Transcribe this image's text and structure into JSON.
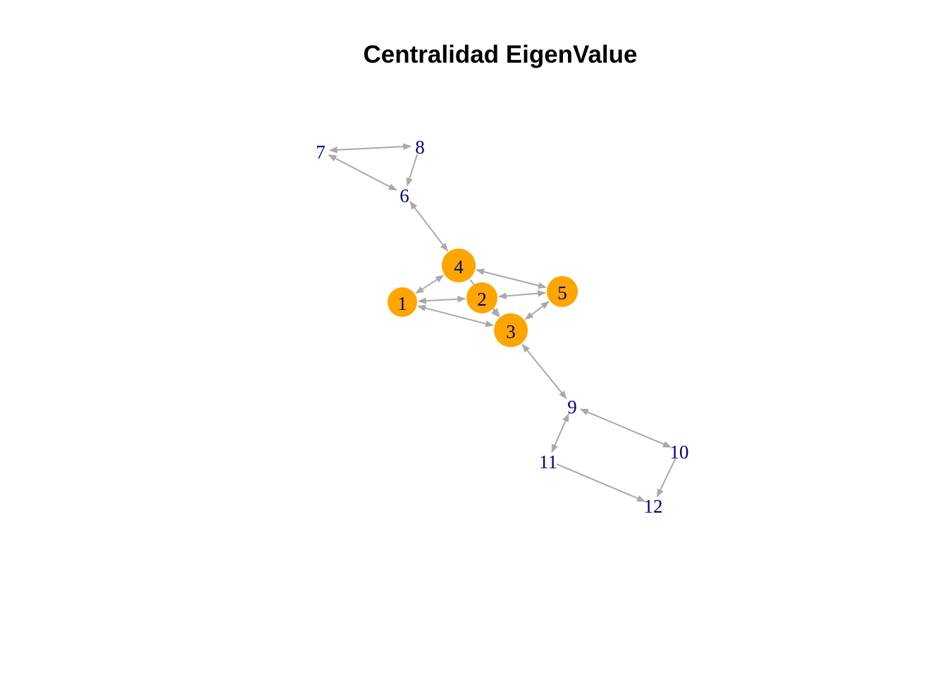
{
  "title": "Centralidad EigenValue",
  "colors": {
    "highlight_node": "#FFA500",
    "label": "#00008B",
    "edge": "#A9A9A9"
  },
  "nodes": [
    {
      "id": "1",
      "highlight": true
    },
    {
      "id": "2",
      "highlight": true
    },
    {
      "id": "3",
      "highlight": true
    },
    {
      "id": "4",
      "highlight": true
    },
    {
      "id": "5",
      "highlight": true
    },
    {
      "id": "6",
      "highlight": false
    },
    {
      "id": "7",
      "highlight": false
    },
    {
      "id": "8",
      "highlight": false
    },
    {
      "id": "9",
      "highlight": false
    },
    {
      "id": "10",
      "highlight": false
    },
    {
      "id": "11",
      "highlight": false
    },
    {
      "id": "12",
      "highlight": false
    }
  ],
  "edges": [
    {
      "from": "7",
      "to": "8",
      "directed": "both"
    },
    {
      "from": "8",
      "to": "6",
      "directed": "forward"
    },
    {
      "from": "7",
      "to": "6",
      "directed": "both"
    },
    {
      "from": "6",
      "to": "4",
      "directed": "both"
    },
    {
      "from": "4",
      "to": "1",
      "directed": "both"
    },
    {
      "from": "4",
      "to": "5",
      "directed": "both"
    },
    {
      "from": "4",
      "to": "3",
      "directed": "forward"
    },
    {
      "from": "1",
      "to": "2",
      "directed": "both"
    },
    {
      "from": "2",
      "to": "5",
      "directed": "both"
    },
    {
      "from": "2",
      "to": "3",
      "directed": "forward"
    },
    {
      "from": "1",
      "to": "3",
      "directed": "both"
    },
    {
      "from": "5",
      "to": "3",
      "directed": "both"
    },
    {
      "from": "3",
      "to": "9",
      "directed": "both"
    },
    {
      "from": "9",
      "to": "10",
      "directed": "both"
    },
    {
      "from": "11",
      "to": "9",
      "directed": "both"
    },
    {
      "from": "11",
      "to": "12",
      "directed": "forward"
    },
    {
      "from": "10",
      "to": "12",
      "directed": "forward"
    }
  ]
}
